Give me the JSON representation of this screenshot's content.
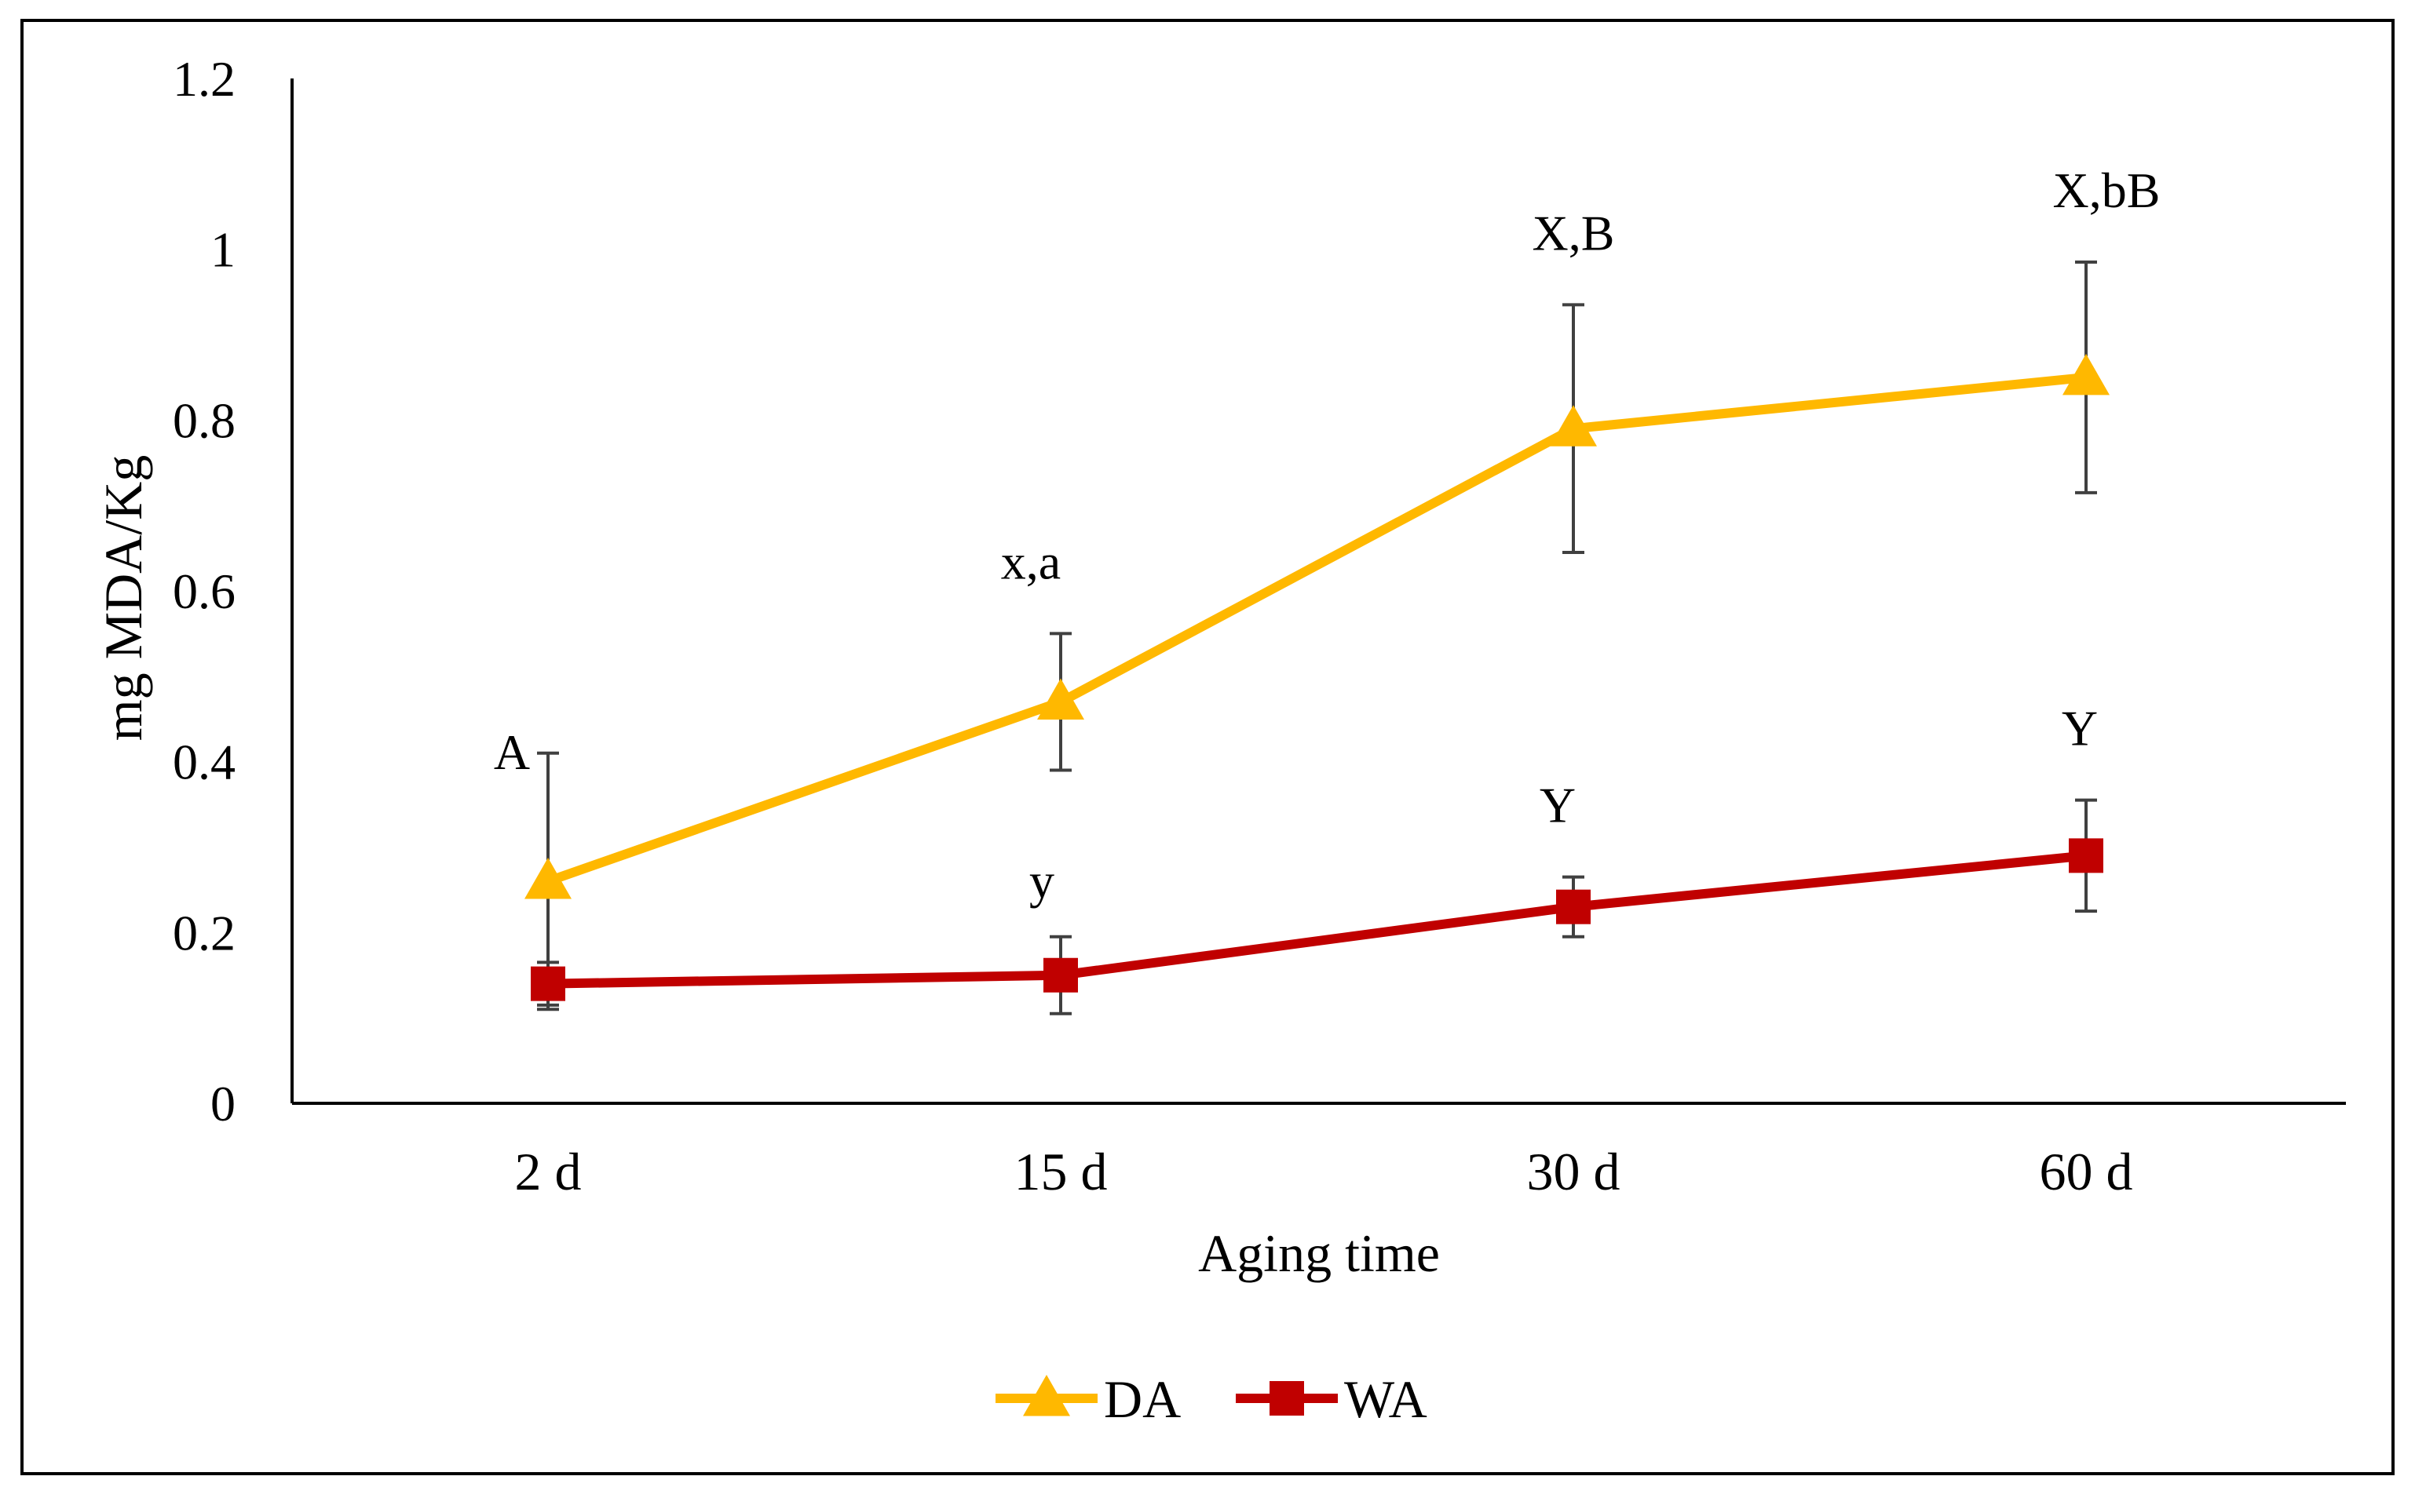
{
  "chart_data": {
    "type": "line",
    "title": "",
    "xlabel": "Aging time",
    "ylabel": "mg MDA/Kg",
    "categories": [
      "2 d",
      "15 d",
      "30 d",
      "60 d"
    ],
    "ylim": [
      0,
      1.2
    ],
    "yticks": [
      "0",
      "0.2",
      "0.4",
      "0.6",
      "0.8",
      "1",
      "1.2"
    ],
    "grid": false,
    "legend": "bottom",
    "series": [
      {
        "name": "DA",
        "color": "#FFB800",
        "marker": "triangle",
        "values": [
          0.26,
          0.47,
          0.79,
          0.85
        ],
        "errors": [
          0.15,
          0.08,
          0.145,
          0.135
        ],
        "annotations": [
          "A",
          "x,a",
          "X,B",
          "X,bB"
        ]
      },
      {
        "name": "WA",
        "color": "#C00000",
        "marker": "square",
        "values": [
          0.14,
          0.15,
          0.23,
          0.29
        ],
        "errors": [
          0.025,
          0.045,
          0.035,
          0.065
        ],
        "annotations": [
          "",
          "y",
          "Y",
          "Y"
        ]
      }
    ]
  }
}
